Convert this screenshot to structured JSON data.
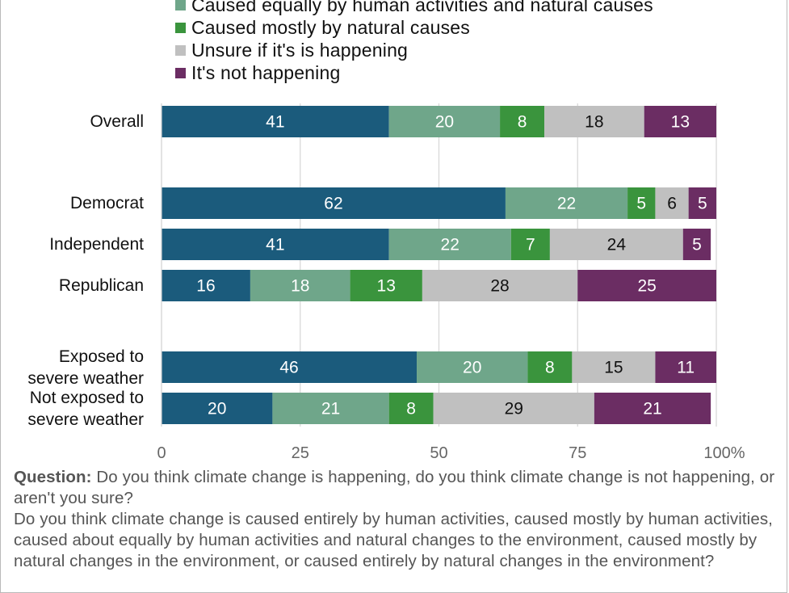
{
  "chart_data": {
    "type": "bar",
    "orientation": "horizontal",
    "stacked": true,
    "series": [
      {
        "name": "Caused equally by human activities and natural causes",
        "color": "#6fa68a",
        "text_color": "#ffffff"
      },
      {
        "name": "Caused mostly by natural causes",
        "color": "#3a943d",
        "text_color": "#ffffff"
      },
      {
        "name": "Unsure if it's is happening",
        "color": "#c0c0c0",
        "text_color": "#111111"
      },
      {
        "name": "It's not happening",
        "color": "#6b2d63",
        "text_color": "#ffffff"
      }
    ],
    "first_segment": {
      "color": "#1b5b7c",
      "text_color": "#ffffff"
    },
    "rows": [
      {
        "label": [
          "Overall"
        ],
        "values": [
          41,
          20,
          8,
          18,
          13
        ]
      },
      {
        "label": [
          "Democrat"
        ],
        "values": [
          62,
          22,
          5,
          6,
          5
        ]
      },
      {
        "label": [
          "Independent"
        ],
        "values": [
          41,
          22,
          7,
          24,
          5
        ]
      },
      {
        "label": [
          "Republican"
        ],
        "values": [
          16,
          18,
          13,
          28,
          25
        ]
      },
      {
        "label": [
          "Exposed to",
          "severe weather"
        ],
        "values": [
          46,
          20,
          8,
          15,
          11
        ]
      },
      {
        "label": [
          "Not exposed to",
          "severe weather"
        ],
        "values": [
          20,
          21,
          8,
          29,
          21
        ]
      }
    ],
    "x_ticks": [
      "0",
      "25",
      "50",
      "75",
      "100%"
    ],
    "xlim": [
      0,
      100
    ],
    "grid": true,
    "legend_position": "top"
  },
  "footnote": {
    "question_label": "Question:",
    "question_text": " Do you think climate change is happening, do you think climate change is not happening, or aren't you sure?",
    "second_text": "Do you think climate change is caused entirely by human activities, caused mostly by human activities, caused about equally by human activities and natural changes to the environment, caused mostly by natural changes in the environment, or caused entirely by natural changes in the environment?"
  }
}
